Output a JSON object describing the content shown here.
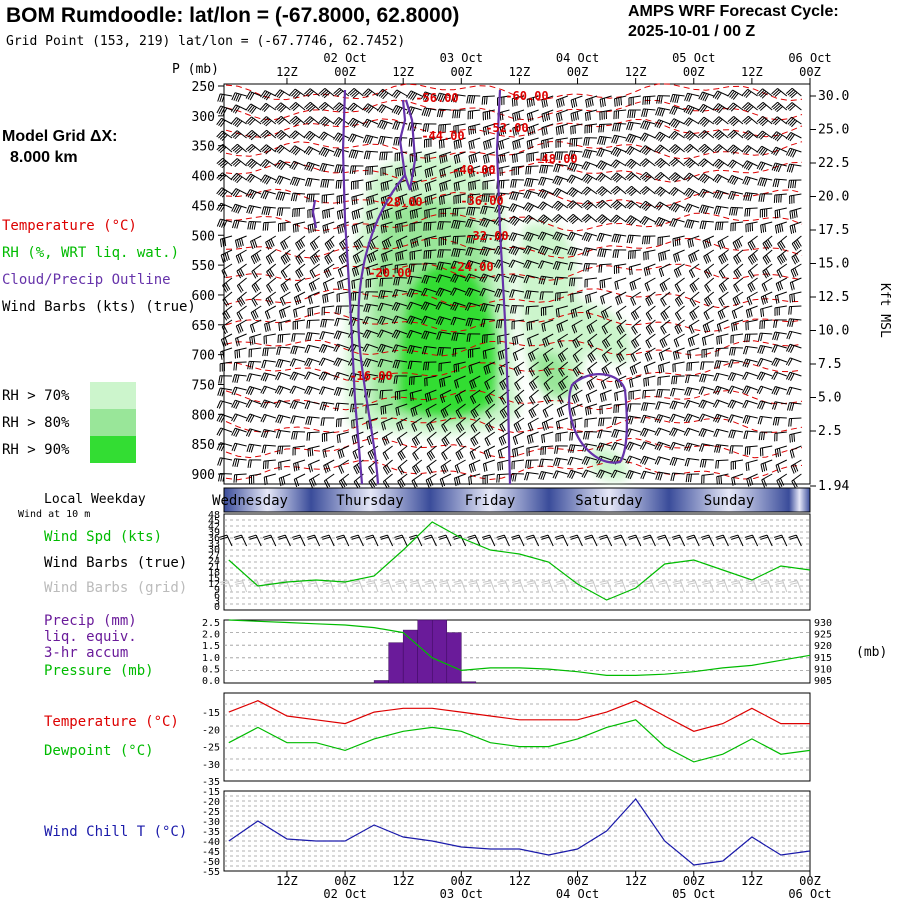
{
  "header": {
    "title": "BOM Rumdoodle:  lat/lon = (-67.8000, 62.8000)",
    "gridpoint": "Grid Point (153, 219) lat/lon = (-67.7746, 62.7452)",
    "cycle_line1": "AMPS WRF Forecast Cycle:",
    "cycle_line2": "2025-10-01 / 00  Z"
  },
  "left_panel": {
    "model_grid_label": "Model Grid ΔX:",
    "model_grid_value": "8.000 km",
    "legend": {
      "temperature": "Temperature (°C)",
      "rh": "RH (%, WRT liq. wat.)",
      "cloud": "Cloud/Precip Outline",
      "wind": "Wind Barbs (kts) (true)"
    },
    "rh_keys": [
      {
        "label": "RH > 70%",
        "color": "#ccf5cc"
      },
      {
        "label": "RH > 80%",
        "color": "#99e699"
      },
      {
        "label": "RH > 90%",
        "color": "#33dd33"
      }
    ]
  },
  "colors": {
    "temperature": "#dd0000",
    "rh": "#00bb00",
    "cloud": "#6633aa",
    "wind_chill": "#1a1aaa",
    "precip": "#6a1b9a",
    "wind_grid": "#c8c8c8",
    "dewpoint": "#00bb00",
    "day_band_dark": "#3a4c9a",
    "day_band_light": "#e6e8f8"
  },
  "time_axis": {
    "top_ticks": [
      "12Z",
      "00Z",
      "12Z",
      "00Z",
      "12Z",
      "00Z",
      "12Z",
      "00Z",
      "12Z",
      "00Z"
    ],
    "date_labels": [
      "02 Oct",
      "03 Oct",
      "04 Oct",
      "05 Oct",
      "06 Oct"
    ],
    "weekdays": [
      "Wednesday",
      "Thursday",
      "Friday",
      "Saturday",
      "Sunday"
    ],
    "local_weekday_label": "Local Weekday",
    "wind_at_label": "Wind at 10 m"
  },
  "chart_data": [
    {
      "type": "heatmap",
      "name": "vertical-cross-section",
      "ylabel": "P (mb)",
      "y_ticks": [
        250,
        300,
        350,
        400,
        450,
        500,
        550,
        600,
        650,
        700,
        750,
        800,
        850,
        900
      ],
      "ylim": [
        920,
        250
      ],
      "right_axis_label": "Kft MSL",
      "right_axis_ticks": [
        "30.0",
        "25.0",
        "22.5",
        "20.0",
        "17.5",
        "15.0",
        "12.5",
        "10.0",
        "7.5",
        "5.0",
        "2.5",
        "1.94"
      ],
      "temperature_contour_labels": [
        "-56.00",
        "-60.00",
        "-44.00",
        "-52.00",
        "-48.00",
        "-40.00",
        "-28.00",
        "-36.00",
        "-32.00",
        "-24.00",
        "-20.00",
        "-16.00"
      ],
      "xlim_hours": [
        -1,
        120
      ]
    },
    {
      "type": "line",
      "name": "wind-speed",
      "labels": [
        "Wind Spd (kts)",
        "Wind Barbs (true)",
        "Wind Barbs (grid)"
      ],
      "y_ticks": [
        "48",
        "45",
        "42",
        "39",
        "36",
        "33",
        "30",
        "27",
        "24",
        "21",
        "18",
        "15",
        "12",
        "9",
        "6",
        "3",
        "0"
      ],
      "ylim": [
        0,
        48
      ],
      "x": [
        0,
        6,
        12,
        18,
        24,
        30,
        36,
        42,
        48,
        54,
        60,
        66,
        72,
        78,
        84,
        90,
        96,
        102,
        108,
        114,
        120
      ],
      "values": [
        25,
        12,
        14,
        15,
        14,
        17,
        30,
        44,
        36,
        30,
        28,
        24,
        13,
        5,
        11,
        23,
        25,
        20,
        15,
        22,
        20
      ]
    },
    {
      "type": "bar",
      "name": "precip-pressure",
      "labels": [
        "Precip (mm)",
        "liq. equiv.",
        "3-hr accum",
        "Pressure (mb)"
      ],
      "y_ticks": [
        "2.5",
        "2.0",
        "1.5",
        "1.0",
        "0.5",
        "0.0"
      ],
      "ylim": [
        0,
        2.5
      ],
      "right_ticks": [
        "930",
        "925",
        "920",
        "915",
        "910",
        "905"
      ],
      "right_ylim": [
        905,
        930
      ],
      "right_unit": "(mb)",
      "bars": [
        {
          "x_start": 30,
          "x_end": 33,
          "value": 0.1
        },
        {
          "x_start": 33,
          "x_end": 36,
          "value": 1.6
        },
        {
          "x_start": 36,
          "x_end": 39,
          "value": 2.1
        },
        {
          "x_start": 39,
          "x_end": 42,
          "value": 2.5
        },
        {
          "x_start": 42,
          "x_end": 45,
          "value": 2.5
        },
        {
          "x_start": 45,
          "x_end": 48,
          "value": 2.0
        },
        {
          "x_start": 48,
          "x_end": 51,
          "value": 0.05
        }
      ],
      "pressure_x": [
        0,
        6,
        12,
        18,
        24,
        30,
        36,
        42,
        48,
        54,
        60,
        66,
        72,
        78,
        84,
        90,
        96,
        102,
        108,
        114,
        120
      ],
      "pressure_values": [
        930,
        929.5,
        929,
        928.5,
        928,
        927,
        925,
        915,
        910,
        911,
        911,
        910.5,
        909.5,
        908,
        908,
        908.5,
        909.5,
        911,
        912,
        914,
        916
      ]
    },
    {
      "type": "line",
      "name": "temperature-dewpoint",
      "labels": [
        "Temperature (°C)",
        "Dewpoint (°C)"
      ],
      "y_ticks": [
        "-15",
        "-20",
        "-25",
        "-30",
        "-35"
      ],
      "ylim": [
        -35,
        -12
      ],
      "x": [
        0,
        6,
        12,
        18,
        24,
        30,
        36,
        42,
        48,
        54,
        60,
        66,
        72,
        78,
        84,
        90,
        96,
        102,
        108,
        114,
        120
      ],
      "series": [
        {
          "name": "Temperature",
          "values": [
            -17,
            -14,
            -18,
            -19,
            -20,
            -17,
            -16,
            -16,
            -17,
            -18,
            -19,
            -19,
            -19,
            -17,
            -14,
            -18,
            -22,
            -20,
            -16,
            -20,
            -20
          ]
        },
        {
          "name": "Dewpoint",
          "values": [
            -25,
            -21,
            -25,
            -25,
            -27,
            -24,
            -22,
            -21,
            -22,
            -25,
            -26,
            -26,
            -24,
            -21,
            -19,
            -26,
            -30,
            -28,
            -24,
            -28,
            -27
          ]
        }
      ]
    },
    {
      "type": "line",
      "name": "wind-chill",
      "labels": [
        "Wind Chill T (°C)"
      ],
      "y_ticks": [
        "-15",
        "-20",
        "-25",
        "-30",
        "-35",
        "-40",
        "-45",
        "-50",
        "-55"
      ],
      "ylim": [
        -55,
        -15
      ],
      "x": [
        0,
        6,
        12,
        18,
        24,
        30,
        36,
        42,
        48,
        54,
        60,
        66,
        72,
        78,
        84,
        90,
        96,
        102,
        108,
        114,
        120
      ],
      "values": [
        -40,
        -30,
        -39,
        -40,
        -40,
        -32,
        -38,
        -40,
        -43,
        -44,
        -44,
        -47,
        -44,
        -35,
        -19,
        -40,
        -52,
        -50,
        -38,
        -47,
        -45
      ]
    }
  ]
}
